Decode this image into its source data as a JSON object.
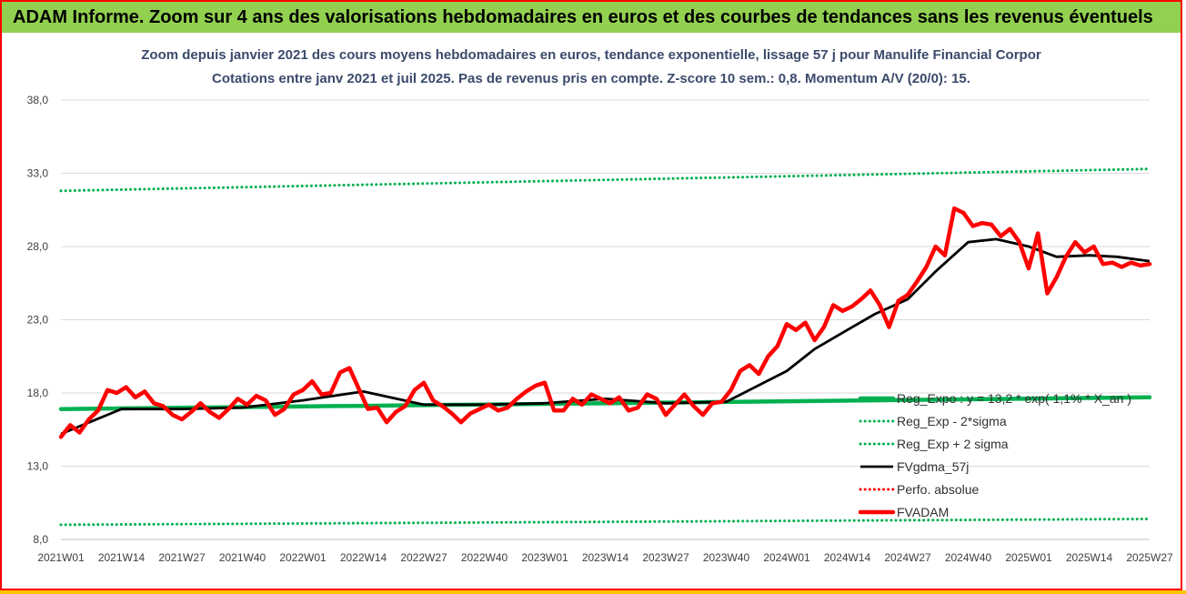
{
  "header": {
    "title": "ADAM Informe. Zoom sur 4 ans des valorisations hebdomadaires en euros et des courbes de tendances sans les revenus éventuels"
  },
  "colors": {
    "header_bg": "#92d050",
    "frame": "#ff0000",
    "bottom_bar": "#ffc000",
    "regression": "#00b050",
    "sigma": "#00b050",
    "gdma": "#000000",
    "perfo": "#ff0000",
    "price": "#ff0000"
  },
  "chart_data": {
    "type": "line",
    "title": "Zoom depuis janvier 2021 des cours moyens hebdomadaires en euros, tendance exponentielle, lissage 57 j pour Manulife Financial Corpor",
    "subtitle": "Cotations entre janv 2021 et juil 2025. Pas de revenus pris en compte. Z-score 10 sem.: 0,8. Momentum A/V (20/0): 15.",
    "ylim": [
      8,
      38
    ],
    "y_ticks": [
      "8,0",
      "13,0",
      "18,0",
      "23,0",
      "28,0",
      "33,0",
      "38,0"
    ],
    "y_tick_values": [
      8,
      13,
      18,
      23,
      28,
      33,
      38
    ],
    "x_ticks": [
      "2021W01",
      "2021W14",
      "2021W27",
      "2021W40",
      "2022W01",
      "2022W14",
      "2022W27",
      "2022W40",
      "2023W01",
      "2023W14",
      "2023W27",
      "2023W40",
      "2024W01",
      "2024W14",
      "2024W27",
      "2024W40",
      "2025W01",
      "2025W14",
      "2025W27"
    ],
    "x_range_weeks": [
      0,
      234
    ],
    "grid": "horizontal",
    "legend_position": "right",
    "series": [
      {
        "name": "Reg_Expo : y = 13,2 * exp( 1,1% * X_an )",
        "style": "thick-solid",
        "x": [
          0,
          234
        ],
        "y": [
          16.9,
          17.7
        ]
      },
      {
        "name": "Reg_Exp - 2*sigma",
        "style": "dotted",
        "x": [
          0,
          234
        ],
        "y": [
          9.0,
          9.4
        ]
      },
      {
        "name": "Reg_Exp + 2 sigma",
        "style": "dotted",
        "x": [
          0,
          234
        ],
        "y": [
          31.8,
          33.3
        ]
      },
      {
        "name": "FVgdma_57j",
        "style": "solid",
        "x": [
          0,
          13,
          26,
          39,
          52,
          65,
          78,
          91,
          104,
          117,
          130,
          143,
          156,
          162,
          169,
          175,
          182,
          188,
          195,
          201,
          208,
          214,
          221,
          227,
          234
        ],
        "y": [
          15.2,
          16.9,
          16.9,
          17.0,
          17.5,
          18.1,
          17.2,
          17.2,
          17.3,
          17.6,
          17.3,
          17.4,
          19.5,
          21.0,
          22.3,
          23.4,
          24.4,
          26.3,
          28.3,
          28.5,
          28.0,
          27.3,
          27.4,
          27.3,
          27.0
        ]
      },
      {
        "name": "Perfo. absolue",
        "style": "dotted",
        "x": [],
        "y": []
      },
      {
        "name": "FVADAM",
        "style": "thick-solid",
        "x": [
          0,
          2,
          4,
          6,
          8,
          10,
          12,
          14,
          16,
          18,
          20,
          22,
          24,
          26,
          28,
          30,
          32,
          34,
          36,
          38,
          40,
          42,
          44,
          46,
          48,
          50,
          52,
          54,
          56,
          58,
          60,
          62,
          64,
          66,
          68,
          70,
          72,
          74,
          76,
          78,
          80,
          82,
          84,
          86,
          88,
          90,
          92,
          94,
          96,
          98,
          100,
          102,
          104,
          106,
          108,
          110,
          112,
          114,
          116,
          118,
          120,
          122,
          124,
          126,
          128,
          130,
          132,
          134,
          136,
          138,
          140,
          142,
          144,
          146,
          148,
          150,
          152,
          154,
          156,
          158,
          160,
          162,
          164,
          166,
          168,
          170,
          172,
          174,
          176,
          178,
          180,
          182,
          184,
          186,
          188,
          190,
          192,
          194,
          196,
          198,
          200,
          202,
          204,
          206,
          208,
          210,
          212,
          214,
          216,
          218,
          220,
          222,
          224,
          226,
          228,
          230,
          232,
          234
        ],
        "y": [
          15.0,
          15.8,
          15.3,
          16.2,
          16.8,
          18.2,
          18.0,
          18.4,
          17.7,
          18.1,
          17.3,
          17.1,
          16.5,
          16.2,
          16.7,
          17.3,
          16.7,
          16.3,
          16.9,
          17.6,
          17.2,
          17.8,
          17.5,
          16.5,
          16.9,
          17.9,
          18.2,
          18.8,
          17.9,
          18.0,
          19.4,
          19.7,
          18.3,
          16.9,
          17.0,
          16.0,
          16.7,
          17.1,
          18.2,
          18.7,
          17.5,
          17.1,
          16.6,
          16.0,
          16.6,
          16.9,
          17.2,
          16.8,
          17.0,
          17.6,
          18.1,
          18.5,
          18.7,
          16.8,
          16.8,
          17.6,
          17.2,
          17.9,
          17.6,
          17.3,
          17.7,
          16.8,
          17.0,
          17.9,
          17.6,
          16.5,
          17.2,
          17.9,
          17.1,
          16.5,
          17.3,
          17.4,
          18.2,
          19.5,
          19.9,
          19.3,
          20.5,
          21.2,
          22.7,
          22.3,
          22.8,
          21.6,
          22.5,
          24.0,
          23.6,
          23.9,
          24.4,
          25.0,
          24.0,
          22.5,
          24.3,
          24.7,
          25.6,
          26.6,
          28.0,
          27.4,
          30.6,
          30.3,
          29.4,
          29.6,
          29.5,
          28.7,
          29.2,
          28.3,
          26.5,
          28.9,
          24.8,
          25.9,
          27.3,
          28.3,
          27.6,
          28.0,
          26.8,
          26.9,
          26.6,
          26.9,
          26.7,
          26.8
        ]
      }
    ]
  },
  "legend": [
    {
      "label": "Reg_Expo : y = 13,2 * exp( 1,1% * X_an )"
    },
    {
      "label": "Reg_Exp - 2*sigma"
    },
    {
      "label": "Reg_Exp + 2 sigma"
    },
    {
      "label": "FVgdma_57j"
    },
    {
      "label": "Perfo. absolue"
    },
    {
      "label": "FVADAM"
    }
  ]
}
